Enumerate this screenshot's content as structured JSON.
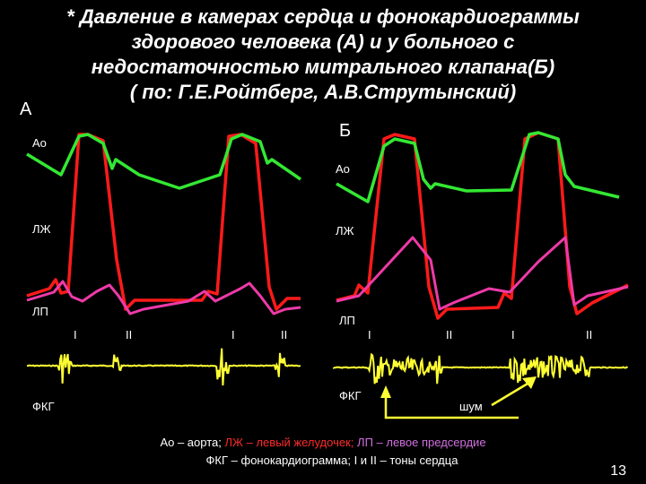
{
  "title": [
    "* Давление в камерах сердца и фонокардиограммы",
    "здорового человека (А) и у больного с",
    "недостаточностью  митрального клапана(Б)",
    "( по: Г.Е.Ройтберг, А.В.Струтынский)"
  ],
  "panels": [
    {
      "label": "А",
      "aorta": "Ао",
      "lv": "ЛЖ",
      "la": "ЛП",
      "pcg": "ФКГ",
      "tones": [
        "I",
        "II",
        "I",
        "II"
      ]
    },
    {
      "label": "Б",
      "aorta": "Ао",
      "lv": "ЛЖ",
      "la": "ЛП",
      "pcg": "ФКГ",
      "tones": [
        "I",
        "II",
        "I",
        "II"
      ],
      "murmur": "шум"
    }
  ],
  "legend": [
    [
      "Ао – аорта;",
      "ЛЖ – левый желудочек;",
      "ЛП – левое предсердие"
    ],
    [
      "ФКГ – фонокардиограмма; I и II – тоны сердца"
    ]
  ],
  "page_number": "13"
}
